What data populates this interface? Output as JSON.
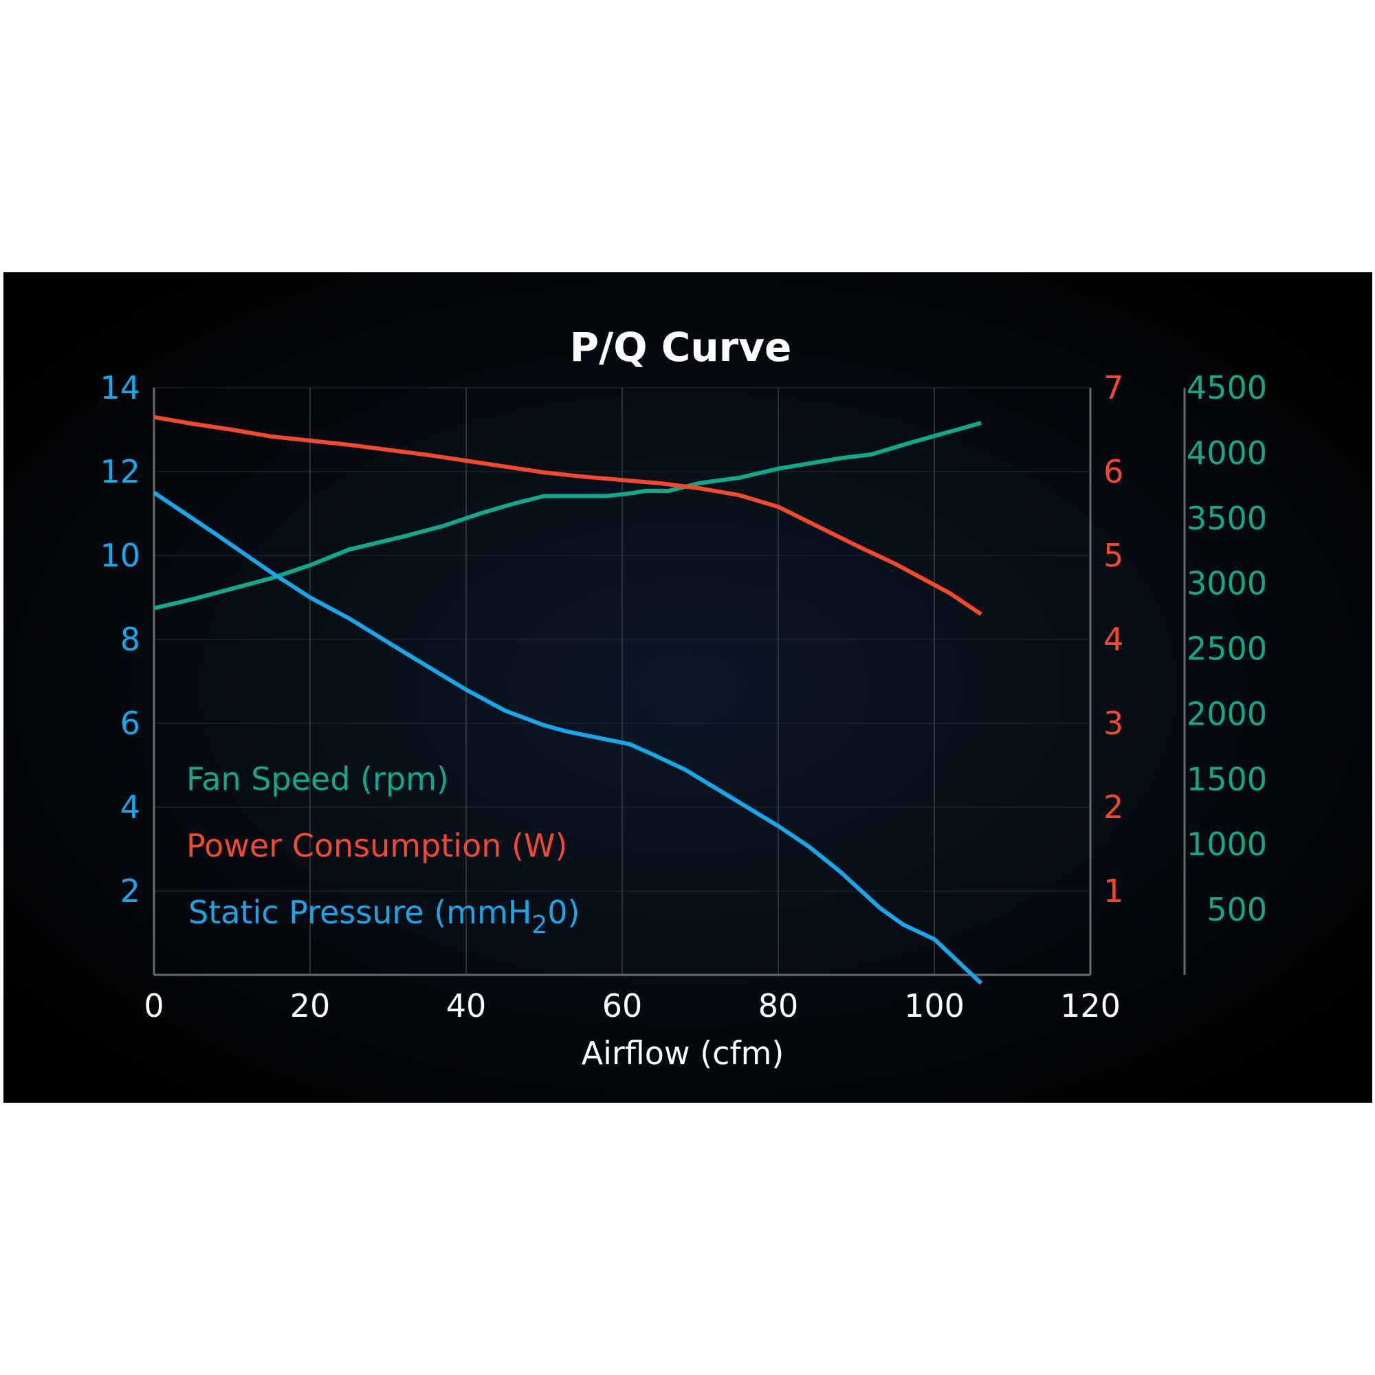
{
  "colors": {
    "pressure": "#1aa6e8",
    "power": "#f2492f",
    "speed": "#12a98b",
    "text": "#ffffff"
  },
  "chart_data": {
    "type": "line",
    "title": "P/Q Curve",
    "xlabel": "Airflow (cfm)",
    "xlim": [
      0,
      120
    ],
    "x_ticks": [
      "0",
      "20",
      "40",
      "60",
      "80",
      "100",
      "120"
    ],
    "axes": {
      "pressure": {
        "ylim": [
          0,
          14
        ],
        "ticks": [
          "2",
          "4",
          "6",
          "8",
          "10",
          "12",
          "14"
        ]
      },
      "power": {
        "ylim": [
          0,
          7
        ],
        "ticks": [
          "1",
          "2",
          "3",
          "4",
          "5",
          "6",
          "7"
        ]
      },
      "speed": {
        "ylim": [
          0,
          4500
        ],
        "ticks": [
          "500",
          "1000",
          "1500",
          "2000",
          "2500",
          "3000",
          "3500",
          "4000",
          "4500"
        ]
      }
    },
    "grid": true,
    "legend_position": "bottom-left inside",
    "legend": {
      "speed": "Fan Speed (rpm)",
      "power": "Power Consumption (W)",
      "pressure_main": "Static Pressure (mmH",
      "pressure_sub": "2",
      "pressure_tail": "0)"
    },
    "series": [
      {
        "key": "speed",
        "axis": "speed",
        "name": "Fan Speed (rpm)",
        "x": [
          0,
          5,
          10,
          15,
          20,
          25,
          32,
          37,
          42,
          46,
          50,
          54,
          58,
          61,
          63,
          66,
          70,
          75,
          80,
          84,
          88,
          92,
          97,
          100,
          106
        ],
        "y": [
          2810,
          2880,
          2960,
          3040,
          3140,
          3260,
          3360,
          3440,
          3540,
          3610,
          3670,
          3670,
          3670,
          3690,
          3710,
          3710,
          3770,
          3810,
          3880,
          3920,
          3960,
          3990,
          4080,
          4130,
          4230
        ]
      },
      {
        "key": "power",
        "axis": "power",
        "name": "Power Consumption (W)",
        "x": [
          0,
          5,
          10,
          15,
          20,
          25,
          30,
          35,
          40,
          45,
          50,
          55,
          60,
          65,
          70,
          75,
          80,
          85,
          90,
          95,
          100,
          102,
          106
        ],
        "y": [
          6.65,
          6.57,
          6.5,
          6.42,
          6.37,
          6.32,
          6.26,
          6.2,
          6.13,
          6.06,
          5.99,
          5.94,
          5.9,
          5.86,
          5.8,
          5.72,
          5.58,
          5.35,
          5.12,
          4.9,
          4.65,
          4.55,
          4.3
        ]
      },
      {
        "key": "pressure",
        "axis": "pressure",
        "name": "Static Pressure (mmH20)",
        "x": [
          0,
          8,
          15,
          20,
          25,
          32,
          40,
          45,
          50,
          53,
          57,
          61,
          64,
          68,
          72,
          80,
          84,
          88,
          93,
          96,
          100,
          106
        ],
        "y": [
          11.5,
          10.5,
          9.6,
          9.0,
          8.5,
          7.7,
          6.8,
          6.3,
          5.95,
          5.8,
          5.65,
          5.5,
          5.25,
          4.9,
          4.45,
          3.55,
          3.05,
          2.45,
          1.6,
          1.2,
          0.85,
          -0.2
        ]
      }
    ]
  }
}
